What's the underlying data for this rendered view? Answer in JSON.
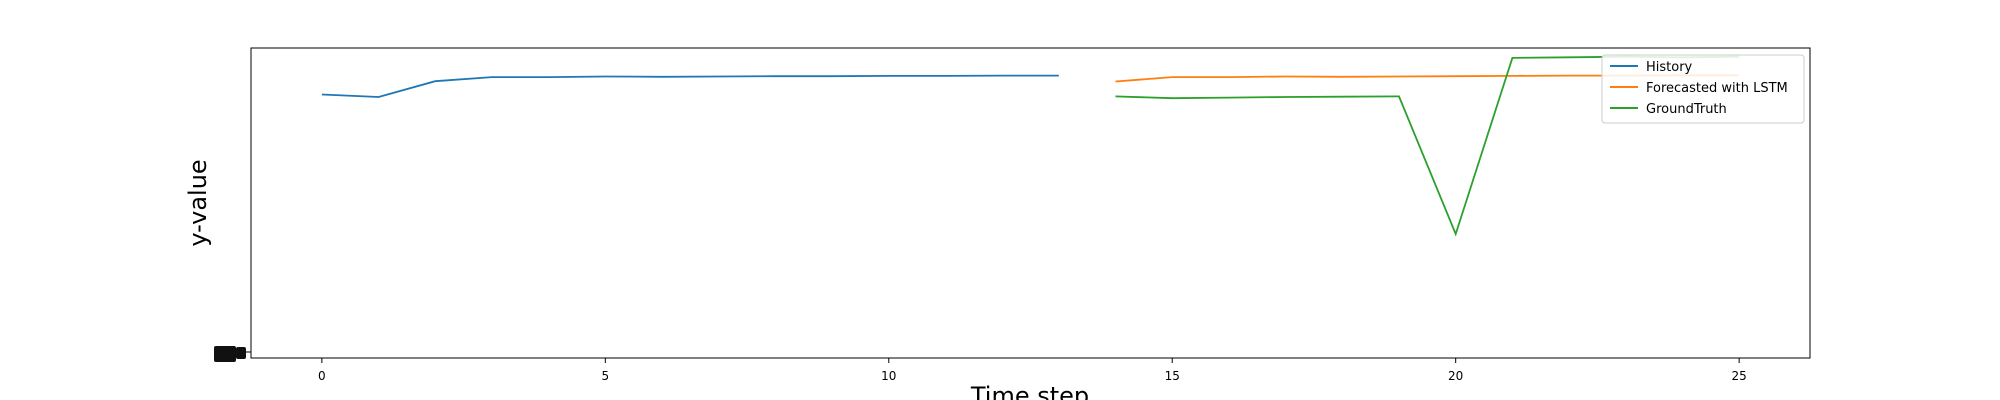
{
  "chart_data": {
    "type": "line",
    "title": "",
    "xlabel": "Time step",
    "ylabel": "y-value",
    "xlim": [
      -1.25,
      26.25
    ],
    "ylim": [
      0,
      100
    ],
    "xticks": [
      0,
      5,
      10,
      15,
      20,
      25
    ],
    "yticks_overlapping": true,
    "grid": false,
    "legend_position": "top-right",
    "series": [
      {
        "name": "History",
        "color": "#1f77b4",
        "x": [
          0,
          1,
          2,
          3,
          4,
          5,
          6,
          7,
          8,
          9,
          10,
          11,
          12,
          13
        ],
        "y": [
          85.0,
          84.2,
          89.3,
          90.6,
          90.6,
          90.8,
          90.7,
          90.8,
          90.9,
          90.9,
          91.0,
          91.0,
          91.1,
          91.1
        ]
      },
      {
        "name": "Forecasted with LSTM",
        "color": "#ff7f0e",
        "x": [
          14,
          15,
          16,
          17,
          18,
          19,
          20,
          21,
          22,
          23,
          24,
          25
        ],
        "y": [
          89.2,
          90.6,
          90.6,
          90.8,
          90.7,
          90.8,
          90.9,
          91.0,
          91.1,
          91.1,
          91.2,
          91.2
        ]
      },
      {
        "name": "GroundTruth",
        "color": "#2ca02c",
        "x": [
          14,
          15,
          16,
          17,
          18,
          19,
          20,
          21,
          22,
          23,
          24,
          25
        ],
        "y": [
          84.4,
          83.8,
          84.0,
          84.2,
          84.3,
          84.4,
          40.0,
          96.8,
          97.0,
          97.2,
          97.0,
          97.2
        ]
      }
    ]
  }
}
